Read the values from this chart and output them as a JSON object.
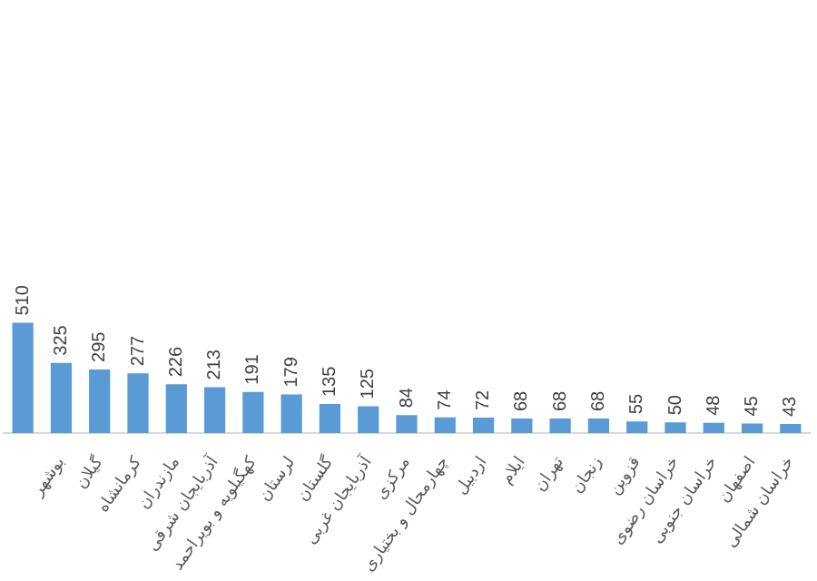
{
  "chart_data": {
    "type": "bar",
    "categories": [
      null,
      "بوشهر",
      "گیلان",
      "کرمانشاه",
      "مازندران",
      "آذربایجان شرقی",
      "کهگیلویه و بویراحمد",
      "لرستان",
      "گلستان",
      "آذربایجان غربی",
      "مرکزی",
      "چهارمحال و بختیاری",
      "اردبیل",
      "ایلام",
      "تهران",
      "زنجان",
      "قزوین",
      "خراسان رضوی",
      "خراسان جنوبی",
      "اصفهان",
      "خراسان شمالی"
    ],
    "values": [
      510,
      325,
      295,
      277,
      226,
      213,
      191,
      179,
      135,
      125,
      84,
      74,
      72,
      68,
      68,
      68,
      55,
      50,
      48,
      45,
      43
    ],
    "color": "#5b9bd5",
    "grid": false,
    "data_labels": true,
    "tick_labels": "x",
    "legend": false
  }
}
